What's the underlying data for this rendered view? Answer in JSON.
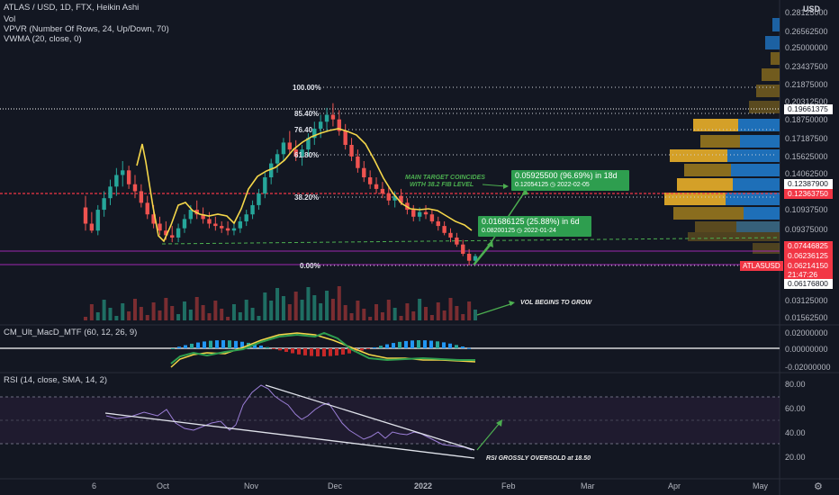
{
  "header": {
    "symbol_line": "ATLAS / USD, 1D, FTX, Heikin Ashi",
    "vol": "Vol",
    "vpvr": "VPVR (Number Of Rows, 24, Up/Down, 70)",
    "vwma": "VWMA (20, close, 0)"
  },
  "price_axis": {
    "currency": "USD",
    "ticks": [
      "0.28125000",
      "0.26562500",
      "0.25000000",
      "0.23437500",
      "0.21875000",
      "0.20312500",
      "0.18750000",
      "0.17187500",
      "0.15625000",
      "0.14062500",
      "0.10937500",
      "0.09375000",
      "0.03125000",
      "0.01562500"
    ],
    "tags": {
      "a": "0.19661375",
      "b": "0.12387900",
      "c": "0.12363750",
      "d": "0.07446825",
      "e": "0.06236125",
      "f": "0.06214150",
      "f_timer": "21:47:26",
      "g": "0.06176800",
      "symbol": "ATLASUSD"
    },
    "colors": {
      "red": "#f23645",
      "white": "#ffffff",
      "purple": "#9c27b0"
    }
  },
  "fib": {
    "l100": "100.00%",
    "l854": "85.40%",
    "l764": "76.40",
    "l618": "61.80%",
    "l382": "38.20%",
    "l0": "0.00%"
  },
  "annotations": {
    "target_box": "0.05925500 (96.69%) in 18d",
    "target_sub": "0.12054125  ◷  2022-02-05",
    "box2": "0.01686125 (25.88%) in 6d",
    "box2_sub": "0.08200125  ◷  2022-01-24",
    "main_target_1": "MAIN TARGET COINCIDES",
    "main_target_2": "WITH 38.2 FIB LEVEL",
    "vol_grow": "VOL BEGINS TO GROW",
    "rsi_note": "RSI GROSSLY OVERSOLD at 18.50"
  },
  "macd": {
    "title": "CM_Ult_MacD_MTF (60, 12, 26, 9)",
    "ticks": [
      "0.02000000",
      "0.00000000",
      "-0.02000000"
    ]
  },
  "rsi": {
    "title": "RSI (14, close, SMA, 14, 2)",
    "ticks": [
      "80.00",
      "60.00",
      "40.00",
      "20.00"
    ]
  },
  "time_axis": [
    "6",
    "Oct",
    "Nov",
    "Dec",
    "2022",
    "Feb",
    "Mar",
    "Apr",
    "May"
  ],
  "chart_data": {
    "type": "candlestick",
    "candles": [
      [
        0.11,
        0.12,
        0.09,
        0.096
      ],
      [
        0.096,
        0.106,
        0.088,
        0.09
      ],
      [
        0.09,
        0.112,
        0.086,
        0.108
      ],
      [
        0.108,
        0.124,
        0.102,
        0.118
      ],
      [
        0.118,
        0.134,
        0.112,
        0.128
      ],
      [
        0.128,
        0.144,
        0.12,
        0.138
      ],
      [
        0.138,
        0.15,
        0.128,
        0.142
      ],
      [
        0.142,
        0.146,
        0.126,
        0.13
      ],
      [
        0.13,
        0.138,
        0.118,
        0.124
      ],
      [
        0.124,
        0.13,
        0.11,
        0.114
      ],
      [
        0.114,
        0.12,
        0.1,
        0.104
      ],
      [
        0.104,
        0.112,
        0.092,
        0.096
      ],
      [
        0.096,
        0.102,
        0.086,
        0.09
      ],
      [
        0.09,
        0.098,
        0.082,
        0.086
      ],
      [
        0.086,
        0.094,
        0.08,
        0.084
      ],
      [
        0.084,
        0.096,
        0.08,
        0.092
      ],
      [
        0.092,
        0.104,
        0.088,
        0.1
      ],
      [
        0.1,
        0.112,
        0.096,
        0.108
      ],
      [
        0.108,
        0.116,
        0.1,
        0.104
      ],
      [
        0.104,
        0.11,
        0.096,
        0.1
      ],
      [
        0.1,
        0.106,
        0.092,
        0.096
      ],
      [
        0.096,
        0.102,
        0.09,
        0.094
      ],
      [
        0.094,
        0.098,
        0.088,
        0.092
      ],
      [
        0.092,
        0.098,
        0.086,
        0.09
      ],
      [
        0.09,
        0.096,
        0.086,
        0.092
      ],
      [
        0.092,
        0.102,
        0.088,
        0.098
      ],
      [
        0.098,
        0.108,
        0.094,
        0.104
      ],
      [
        0.104,
        0.116,
        0.1,
        0.112
      ],
      [
        0.112,
        0.126,
        0.108,
        0.122
      ],
      [
        0.122,
        0.14,
        0.118,
        0.136
      ],
      [
        0.136,
        0.152,
        0.13,
        0.148
      ],
      [
        0.148,
        0.16,
        0.14,
        0.156
      ],
      [
        0.156,
        0.17,
        0.15,
        0.166
      ],
      [
        0.166,
        0.176,
        0.156,
        0.16
      ],
      [
        0.16,
        0.168,
        0.15,
        0.154
      ],
      [
        0.154,
        0.164,
        0.146,
        0.16
      ],
      [
        0.16,
        0.174,
        0.154,
        0.17
      ],
      [
        0.17,
        0.184,
        0.164,
        0.178
      ],
      [
        0.178,
        0.19,
        0.17,
        0.184
      ],
      [
        0.184,
        0.196,
        0.176,
        0.19
      ],
      [
        0.19,
        0.2,
        0.18,
        0.186
      ],
      [
        0.186,
        0.194,
        0.172,
        0.176
      ],
      [
        0.176,
        0.182,
        0.16,
        0.164
      ],
      [
        0.164,
        0.17,
        0.15,
        0.154
      ],
      [
        0.154,
        0.16,
        0.14,
        0.144
      ],
      [
        0.144,
        0.15,
        0.132,
        0.136
      ],
      [
        0.136,
        0.142,
        0.126,
        0.13
      ],
      [
        0.13,
        0.136,
        0.122,
        0.126
      ],
      [
        0.126,
        0.132,
        0.118,
        0.122
      ],
      [
        0.122,
        0.128,
        0.112,
        0.116
      ],
      [
        0.116,
        0.124,
        0.11,
        0.12
      ],
      [
        0.12,
        0.126,
        0.112,
        0.114
      ],
      [
        0.114,
        0.118,
        0.104,
        0.108
      ],
      [
        0.108,
        0.112,
        0.098,
        0.102
      ],
      [
        0.102,
        0.11,
        0.098,
        0.106
      ],
      [
        0.106,
        0.112,
        0.1,
        0.104
      ],
      [
        0.104,
        0.108,
        0.096,
        0.098
      ],
      [
        0.098,
        0.102,
        0.09,
        0.094
      ],
      [
        0.094,
        0.098,
        0.086,
        0.088
      ],
      [
        0.088,
        0.092,
        0.08,
        0.084
      ],
      [
        0.084,
        0.088,
        0.076,
        0.078
      ],
      [
        0.078,
        0.082,
        0.068,
        0.07
      ],
      [
        0.07,
        0.074,
        0.06,
        0.064
      ],
      [
        0.064,
        0.07,
        0.062,
        0.068
      ]
    ],
    "ylim": [
      0.0156,
      0.2813
    ]
  }
}
